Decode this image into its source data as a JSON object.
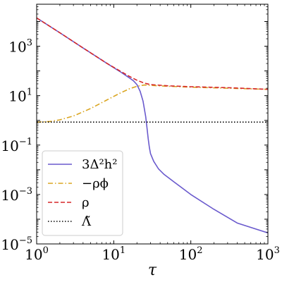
{
  "chart_data": {
    "type": "line",
    "title": "",
    "xlabel": "τ",
    "ylabel": "",
    "xscale": "log",
    "yscale": "log",
    "xlim": [
      1,
      1000
    ],
    "ylim": [
      1e-05,
      50000
    ],
    "xticks": [
      {
        "value": 1,
        "base": "10",
        "exp": "0"
      },
      {
        "value": 10,
        "base": "10",
        "exp": "1"
      },
      {
        "value": 100,
        "base": "10",
        "exp": "2"
      },
      {
        "value": 1000,
        "base": "10",
        "exp": "3"
      }
    ],
    "yticks": [
      {
        "value": 1e-05,
        "base": "10",
        "exp": "−5"
      },
      {
        "value": 0.001,
        "base": "10",
        "exp": "−3"
      },
      {
        "value": 0.1,
        "base": "10",
        "exp": "−1"
      },
      {
        "value": 10,
        "base": "10",
        "exp": "1"
      },
      {
        "value": 1000,
        "base": "10",
        "exp": "3"
      }
    ],
    "grid": false,
    "legend": {
      "position": "lower-left"
    },
    "series": [
      {
        "name": "3Δ²h²",
        "color": "#6a5acd",
        "style": "solid",
        "points": [
          [
            1,
            14000
          ],
          [
            2,
            3500
          ],
          [
            4,
            850
          ],
          [
            8,
            210
          ],
          [
            12,
            95
          ],
          [
            16,
            52
          ],
          [
            18,
            40
          ],
          [
            20,
            28
          ],
          [
            22,
            15
          ],
          [
            24,
            6
          ],
          [
            26,
            1.4
          ],
          [
            27,
            0.5
          ],
          [
            28,
            0.18
          ],
          [
            29,
            0.08
          ],
          [
            30,
            0.045
          ],
          [
            33,
            0.022
          ],
          [
            38,
            0.011
          ],
          [
            45,
            0.0065
          ],
          [
            60,
            0.0033
          ],
          [
            100,
            0.001
          ],
          [
            200,
            0.00025
          ],
          [
            400,
            7e-05
          ],
          [
            1000,
            2.8e-05
          ]
        ]
      },
      {
        "name": "−ρ_φ",
        "color": "#daa520",
        "style": "dashdot",
        "points": [
          [
            1,
            0.85
          ],
          [
            1.5,
            0.9
          ],
          [
            2,
            1.05
          ],
          [
            3,
            1.5
          ],
          [
            5,
            3
          ],
          [
            8,
            6.5
          ],
          [
            12,
            12.5
          ],
          [
            16,
            19
          ],
          [
            20,
            24
          ],
          [
            25,
            27
          ],
          [
            30,
            26
          ],
          [
            50,
            24
          ],
          [
            100,
            22
          ],
          [
            300,
            20
          ],
          [
            1000,
            18
          ]
        ]
      },
      {
        "name": "ρ",
        "color": "#d62728",
        "style": "dashed",
        "points": [
          [
            1,
            14000
          ],
          [
            2,
            3500
          ],
          [
            4,
            850
          ],
          [
            8,
            210
          ],
          [
            12,
            100
          ],
          [
            16,
            60
          ],
          [
            20,
            42
          ],
          [
            25,
            32
          ],
          [
            30,
            28
          ],
          [
            50,
            25
          ],
          [
            100,
            23
          ],
          [
            300,
            21
          ],
          [
            1000,
            18
          ]
        ]
      },
      {
        "name": "Λ̃",
        "color": "#000000",
        "style": "dotted",
        "points": [
          [
            1,
            0.85
          ],
          [
            1000,
            0.85
          ]
        ]
      }
    ]
  },
  "legend_items": [
    {
      "label": "3Δ²h²",
      "color": "#6a5acd",
      "style": "solid"
    },
    {
      "label": "−ρϕ",
      "color": "#daa520",
      "style": "dashdot"
    },
    {
      "label": "ρ",
      "color": "#d62728",
      "style": "dashed"
    },
    {
      "label": "Λ̃",
      "color": "#000000",
      "style": "dotted"
    }
  ]
}
